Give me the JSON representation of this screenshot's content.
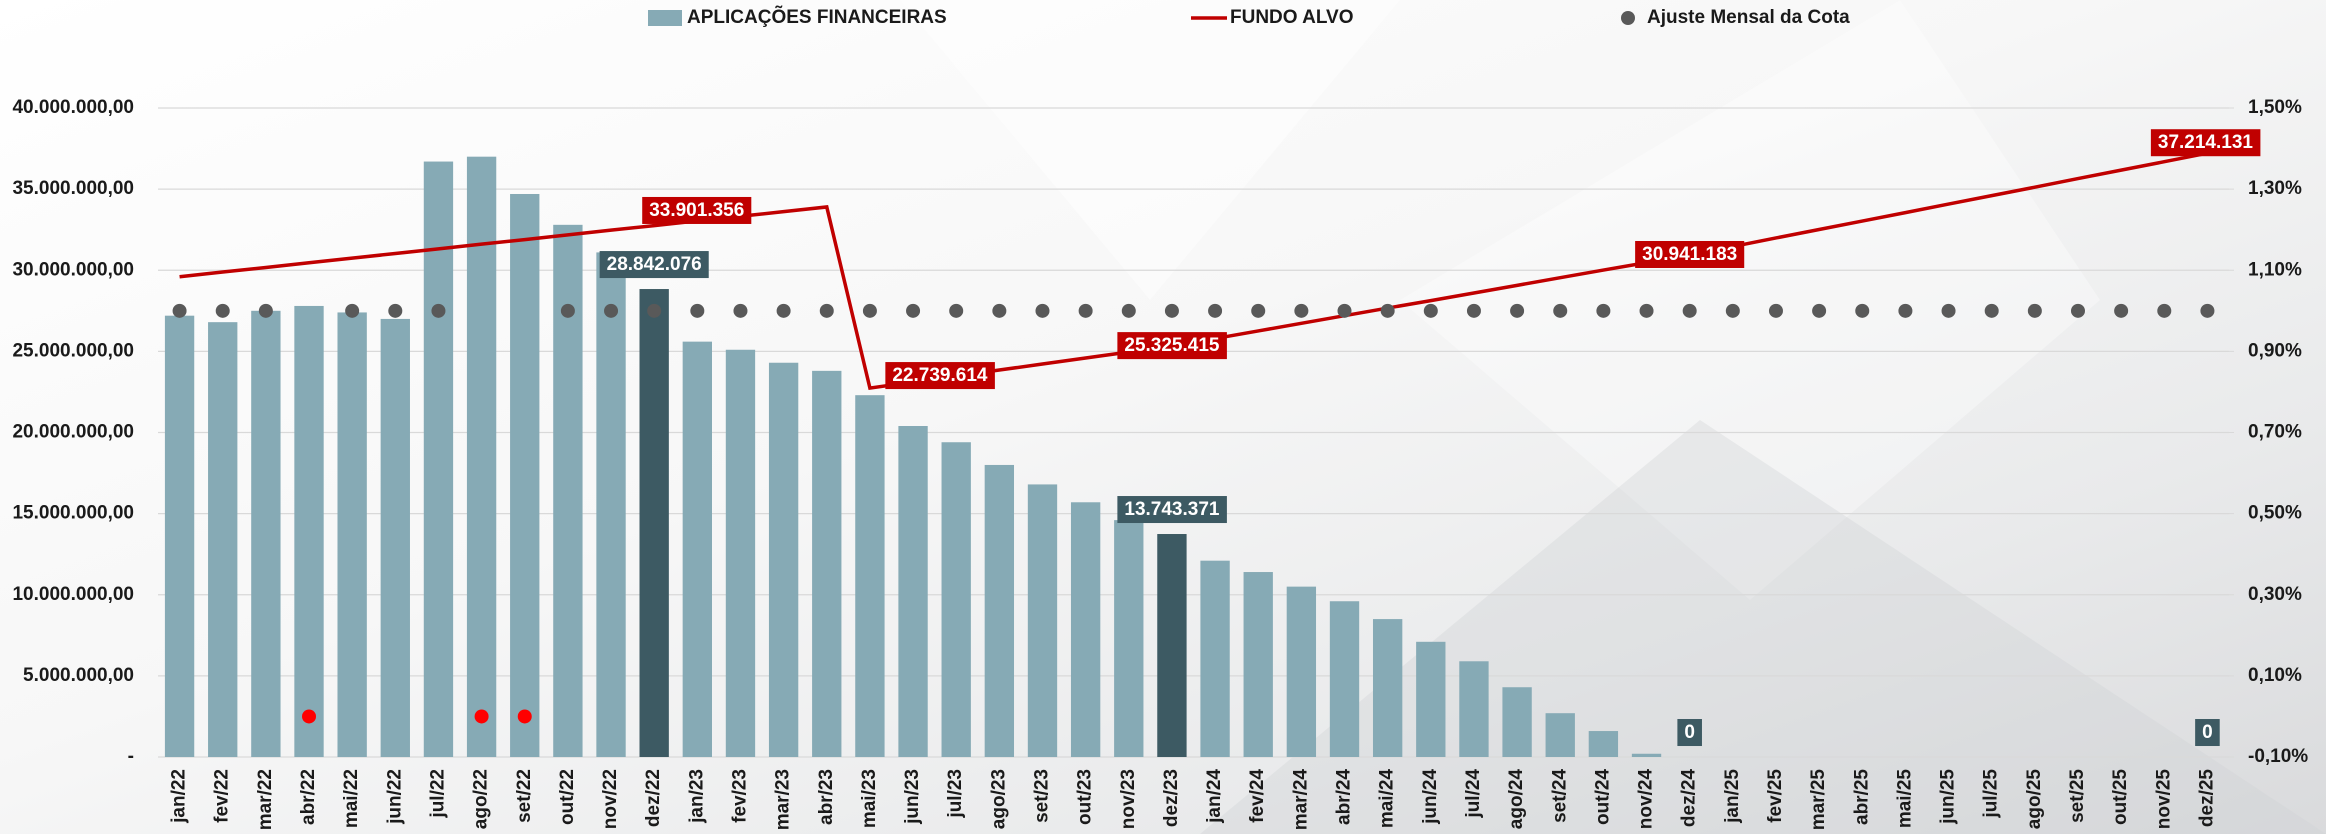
{
  "chart_data": {
    "type": "combo",
    "categories": [
      "jan/22",
      "fev/22",
      "mar/22",
      "abr/22",
      "mai/22",
      "jun/22",
      "jul/22",
      "ago/22",
      "set/22",
      "out/22",
      "nov/22",
      "dez/22",
      "jan/23",
      "fev/23",
      "mar/23",
      "abr/23",
      "mai/23",
      "jun/23",
      "jul/23",
      "ago/23",
      "set/23",
      "out/23",
      "nov/23",
      "dez/23",
      "jan/24",
      "fev/24",
      "mar/24",
      "abr/24",
      "mai/24",
      "jun/24",
      "jul/24",
      "ago/24",
      "set/24",
      "out/24",
      "nov/24",
      "dez/24",
      "jan/25",
      "fev/25",
      "mar/25",
      "abr/25",
      "mai/25",
      "jun/25",
      "jul/25",
      "ago/25",
      "set/25",
      "out/25",
      "nov/25",
      "dez/25"
    ],
    "ylim": [
      0,
      40000000
    ],
    "yticks": [
      {
        "value": 0,
        "label": "-"
      },
      {
        "value": 5000000,
        "label": "5.000.000,00"
      },
      {
        "value": 10000000,
        "label": "10.000.000,00"
      },
      {
        "value": 15000000,
        "label": "15.000.000,00"
      },
      {
        "value": 20000000,
        "label": "20.000.000,00"
      },
      {
        "value": 25000000,
        "label": "25.000.000,00"
      },
      {
        "value": 30000000,
        "label": "30.000.000,00"
      },
      {
        "value": 35000000,
        "label": "35.000.000,00"
      },
      {
        "value": 40000000,
        "label": "40.000.000,00"
      }
    ],
    "y2lim": [
      -0.1,
      1.5
    ],
    "y2ticks": [
      {
        "value": -0.1,
        "label": "-0,10%"
      },
      {
        "value": 0.1,
        "label": "0,10%"
      },
      {
        "value": 0.3,
        "label": "0,30%"
      },
      {
        "value": 0.5,
        "label": "0,50%"
      },
      {
        "value": 0.7,
        "label": "0,70%"
      },
      {
        "value": 0.9,
        "label": "0,90%"
      },
      {
        "value": 1.1,
        "label": "1,10%"
      },
      {
        "value": 1.3,
        "label": "1,30%"
      },
      {
        "value": 1.5,
        "label": "1,50%"
      }
    ],
    "grid": true,
    "legend": "top",
    "series": [
      {
        "name": "APLICAÇÕES FINANCEIRAS",
        "type": "bar",
        "color": "#86aab5",
        "values": [
          27200000,
          26800000,
          27500000,
          27800000,
          27400000,
          27000000,
          36700000,
          37000000,
          34700000,
          32800000,
          31100000,
          28842076,
          25600000,
          25100000,
          24300000,
          23800000,
          22300000,
          20400000,
          19400000,
          18000000,
          16800000,
          15700000,
          14600000,
          13743371,
          12100000,
          11400000,
          10500000,
          9600000,
          8500000,
          7100000,
          5900000,
          4300000,
          2700000,
          1600000,
          200000,
          0,
          0,
          0,
          0,
          0,
          0,
          0,
          0,
          0,
          0,
          0,
          0,
          0
        ],
        "colors": [
          "#86aab5",
          "#86aab5",
          "#86aab5",
          "#86aab5",
          "#86aab5",
          "#86aab5",
          "#86aab5",
          "#86aab5",
          "#86aab5",
          "#86aab5",
          "#86aab5",
          "#3d5a63",
          "#86aab5",
          "#86aab5",
          "#86aab5",
          "#86aab5",
          "#86aab5",
          "#86aab5",
          "#86aab5",
          "#86aab5",
          "#86aab5",
          "#86aab5",
          "#86aab5",
          "#3d5a63",
          "#86aab5",
          "#86aab5",
          "#86aab5",
          "#86aab5",
          "#86aab5",
          "#86aab5",
          "#86aab5",
          "#86aab5",
          "#86aab5",
          "#86aab5",
          "#86aab5",
          "#3d5a63",
          "#86aab5",
          "#86aab5",
          "#86aab5",
          "#86aab5",
          "#86aab5",
          "#86aab5",
          "#86aab5",
          "#86aab5",
          "#86aab5",
          "#86aab5",
          "#86aab5",
          "#3d5a63"
        ],
        "value_labels": [
          null,
          null,
          null,
          null,
          null,
          null,
          null,
          null,
          null,
          null,
          null,
          "28.842.076",
          null,
          null,
          null,
          null,
          null,
          null,
          null,
          null,
          null,
          null,
          null,
          "13.743.371",
          null,
          null,
          null,
          null,
          null,
          null,
          null,
          null,
          null,
          null,
          null,
          "0",
          null,
          null,
          null,
          null,
          null,
          null,
          null,
          null,
          null,
          null,
          null,
          "0"
        ]
      },
      {
        "name": "FUNDO ALVO",
        "type": "line",
        "color": "#c00000",
        "values": [
          29600000,
          29890000,
          30170000,
          30460000,
          30750000,
          31030000,
          31320000,
          31610000,
          31890000,
          32180000,
          32470000,
          32750000,
          33040000,
          33330000,
          33610000,
          33901356,
          22739614,
          23110000,
          23480000,
          23850000,
          24220000,
          24590000,
          24960000,
          25325415,
          25790000,
          26260000,
          26730000,
          27200000,
          27670000,
          28130000,
          28600000,
          29070000,
          29540000,
          30010000,
          30470000,
          30941183,
          31460000,
          31990000,
          32510000,
          33030000,
          33550000,
          34080000,
          34600000,
          35120000,
          35650000,
          36170000,
          36690000,
          37214131
        ],
        "value_labels": [
          null,
          null,
          null,
          null,
          null,
          null,
          null,
          null,
          null,
          null,
          null,
          null,
          null,
          null,
          null,
          "33.901.356",
          "22.739.614",
          null,
          null,
          null,
          null,
          null,
          null,
          "25.325.415",
          null,
          null,
          null,
          null,
          null,
          null,
          null,
          null,
          null,
          null,
          null,
          "30.941.183",
          null,
          null,
          null,
          null,
          null,
          null,
          null,
          null,
          null,
          null,
          null,
          "37.214.131"
        ]
      },
      {
        "name": "Ajuste Mensal da Cota",
        "type": "scatter",
        "axis": "y2",
        "color": "#595959",
        "values": [
          1.0,
          1.0,
          1.0,
          0.0,
          1.0,
          1.0,
          1.0,
          0.0,
          0.0,
          1.0,
          1.0,
          1.0,
          1.0,
          1.0,
          1.0,
          1.0,
          1.0,
          1.0,
          1.0,
          1.0,
          1.0,
          1.0,
          1.0,
          1.0,
          1.0,
          1.0,
          1.0,
          1.0,
          1.0,
          1.0,
          1.0,
          1.0,
          1.0,
          1.0,
          1.0,
          1.0,
          1.0,
          1.0,
          1.0,
          1.0,
          1.0,
          1.0,
          1.0,
          1.0,
          1.0,
          1.0,
          1.0,
          1.0
        ],
        "colors": [
          "#595959",
          "#595959",
          "#595959",
          "#ff0000",
          "#595959",
          "#595959",
          "#595959",
          "#ff0000",
          "#ff0000",
          "#595959",
          "#595959",
          "#595959",
          "#595959",
          "#595959",
          "#595959",
          "#595959",
          "#595959",
          "#595959",
          "#595959",
          "#595959",
          "#595959",
          "#595959",
          "#595959",
          "#595959",
          "#595959",
          "#595959",
          "#595959",
          "#595959",
          "#595959",
          "#595959",
          "#595959",
          "#595959",
          "#595959",
          "#595959",
          "#595959",
          "#595959",
          "#595959",
          "#595959",
          "#595959",
          "#595959",
          "#595959",
          "#595959",
          "#595959",
          "#595959",
          "#595959",
          "#595959",
          "#595959",
          "#595959"
        ]
      }
    ]
  }
}
